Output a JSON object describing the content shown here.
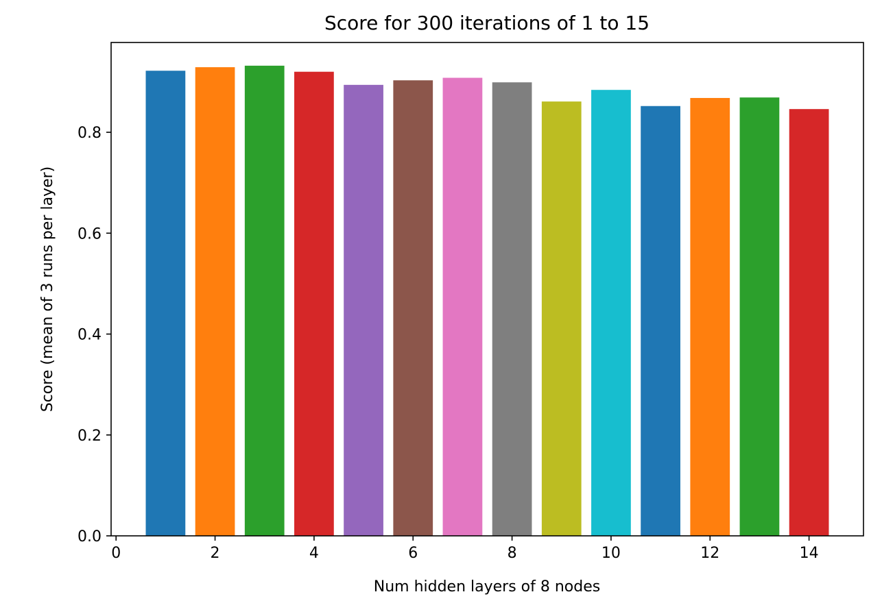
{
  "chart_data": {
    "type": "bar",
    "title": "Score for 300 iterations of 1 to 15",
    "xlabel": "Num hidden layers of 8 nodes",
    "ylabel": "Score (mean of 3 runs per layer)",
    "x": [
      1,
      2,
      3,
      4,
      5,
      6,
      7,
      8,
      9,
      10,
      11,
      12,
      13,
      14
    ],
    "values": [
      0.922,
      0.929,
      0.932,
      0.92,
      0.894,
      0.903,
      0.908,
      0.899,
      0.861,
      0.884,
      0.852,
      0.868,
      0.869,
      0.846
    ],
    "colors": [
      "#1f77b4",
      "#ff7f0e",
      "#2ca02c",
      "#d62728",
      "#9467bd",
      "#8c564b",
      "#e377c2",
      "#7f7f7f",
      "#bcbd22",
      "#17becf",
      "#1f77b4",
      "#ff7f0e",
      "#2ca02c",
      "#d62728"
    ],
    "xlim": [
      -0.1,
      15.1
    ],
    "ylim": [
      0,
      0.978
    ],
    "xticks": [
      0,
      2,
      4,
      6,
      8,
      10,
      12,
      14
    ],
    "xtick_labels": [
      "0",
      "2",
      "4",
      "6",
      "8",
      "10",
      "12",
      "14"
    ],
    "yticks": [
      0.0,
      0.2,
      0.4,
      0.6,
      0.8
    ],
    "ytick_labels": [
      "0.0",
      "0.2",
      "0.4",
      "0.6",
      "0.8"
    ],
    "grid": false,
    "legend": false
  }
}
